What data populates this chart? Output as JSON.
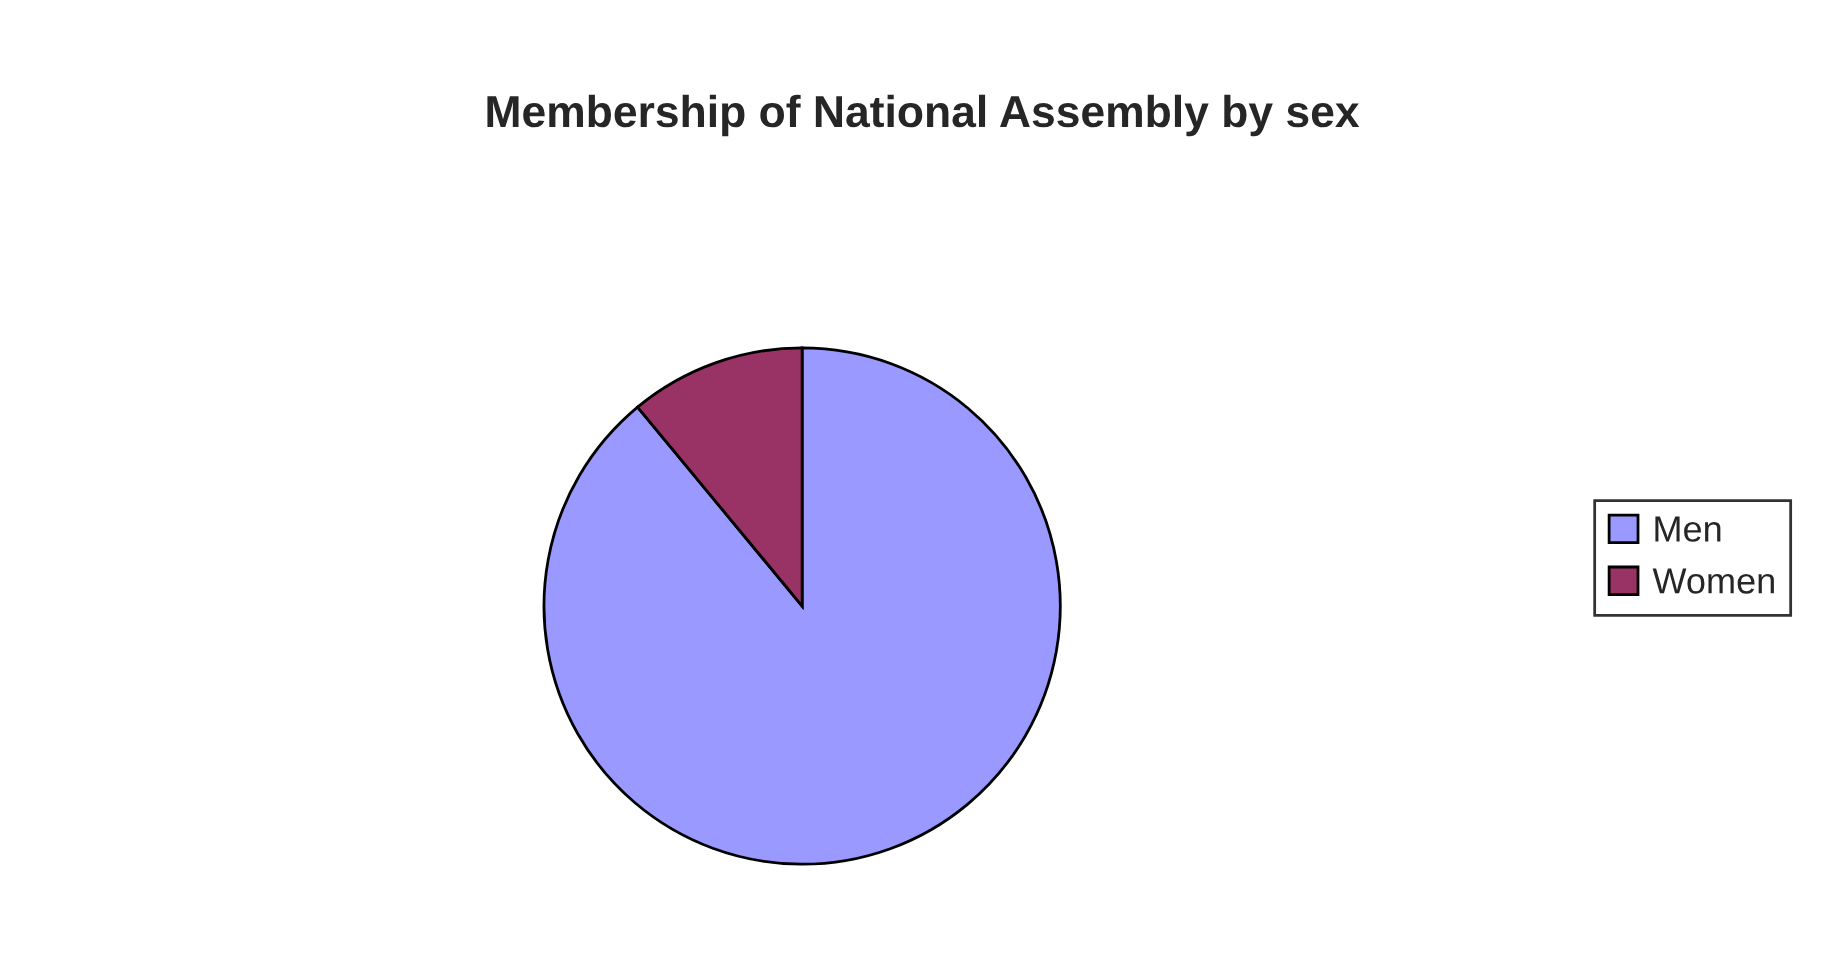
{
  "chart_data": {
    "type": "pie",
    "title": "Membership of National Assembly by sex",
    "categories": [
      "Men",
      "Women"
    ],
    "values": [
      89,
      11
    ],
    "colors": [
      "#9999ff",
      "#993366"
    ],
    "legend": "right"
  }
}
